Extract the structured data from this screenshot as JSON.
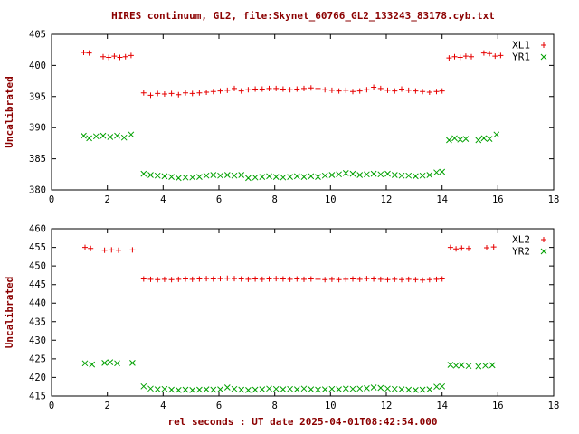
{
  "title": "HIRES continuum, GL2, file:Skynet_60766_GL2_133243_83178.cyb.txt",
  "xlabel": "rel seconds : UT date 2025-04-01T08:42:54.000",
  "colors": {
    "text": "#8b0000",
    "axis": "#000000",
    "red": "#e60000",
    "green": "#00a000"
  },
  "chart_data": [
    {
      "type": "scatter",
      "ylabel": "Uncalibrated",
      "xlim": [
        0,
        18
      ],
      "ylim": [
        380,
        405
      ],
      "xticks": [
        0,
        2,
        4,
        6,
        8,
        10,
        12,
        14,
        16,
        18
      ],
      "yticks": [
        380,
        385,
        390,
        395,
        400,
        405
      ],
      "legend_position": "top-right",
      "grid": false,
      "series": [
        {
          "name": "XL1",
          "marker": "plus",
          "color": "#e60000",
          "points": [
            [
              1.15,
              402.1
            ],
            [
              1.35,
              402.0
            ],
            [
              1.85,
              401.4
            ],
            [
              2.05,
              401.3
            ],
            [
              2.25,
              401.5
            ],
            [
              2.45,
              401.3
            ],
            [
              2.65,
              401.4
            ],
            [
              2.85,
              401.6
            ],
            [
              3.3,
              395.6
            ],
            [
              3.55,
              395.2
            ],
            [
              3.8,
              395.5
            ],
            [
              4.05,
              395.4
            ],
            [
              4.3,
              395.5
            ],
            [
              4.55,
              395.3
            ],
            [
              4.8,
              395.6
            ],
            [
              5.05,
              395.5
            ],
            [
              5.3,
              395.6
            ],
            [
              5.55,
              395.7
            ],
            [
              5.8,
              395.8
            ],
            [
              6.05,
              395.9
            ],
            [
              6.3,
              396.0
            ],
            [
              6.55,
              396.3
            ],
            [
              6.8,
              395.9
            ],
            [
              7.05,
              396.1
            ],
            [
              7.3,
              396.2
            ],
            [
              7.55,
              396.2
            ],
            [
              7.8,
              396.3
            ],
            [
              8.05,
              396.3
            ],
            [
              8.3,
              396.2
            ],
            [
              8.55,
              396.1
            ],
            [
              8.8,
              396.2
            ],
            [
              9.05,
              396.3
            ],
            [
              9.3,
              396.4
            ],
            [
              9.55,
              396.3
            ],
            [
              9.8,
              396.1
            ],
            [
              10.05,
              396.0
            ],
            [
              10.3,
              395.9
            ],
            [
              10.55,
              396.0
            ],
            [
              10.8,
              395.8
            ],
            [
              11.05,
              395.9
            ],
            [
              11.3,
              396.1
            ],
            [
              11.55,
              396.5
            ],
            [
              11.8,
              396.3
            ],
            [
              12.05,
              396.0
            ],
            [
              12.3,
              395.9
            ],
            [
              12.55,
              396.2
            ],
            [
              12.8,
              396.0
            ],
            [
              13.05,
              395.9
            ],
            [
              13.3,
              395.8
            ],
            [
              13.55,
              395.7
            ],
            [
              13.8,
              395.8
            ],
            [
              14.0,
              395.9
            ],
            [
              14.25,
              401.2
            ],
            [
              14.45,
              401.4
            ],
            [
              14.65,
              401.3
            ],
            [
              14.85,
              401.5
            ],
            [
              15.05,
              401.4
            ],
            [
              15.5,
              402.0
            ],
            [
              15.7,
              401.9
            ],
            [
              15.9,
              401.5
            ],
            [
              16.1,
              401.6
            ]
          ]
        },
        {
          "name": "YR1",
          "marker": "cross",
          "color": "#00a000",
          "points": [
            [
              1.15,
              388.7
            ],
            [
              1.35,
              388.3
            ],
            [
              1.6,
              388.6
            ],
            [
              1.85,
              388.7
            ],
            [
              2.1,
              388.5
            ],
            [
              2.35,
              388.7
            ],
            [
              2.6,
              388.4
            ],
            [
              2.85,
              388.9
            ],
            [
              3.3,
              382.6
            ],
            [
              3.55,
              382.4
            ],
            [
              3.8,
              382.3
            ],
            [
              4.05,
              382.2
            ],
            [
              4.3,
              382.1
            ],
            [
              4.55,
              381.9
            ],
            [
              4.8,
              382.0
            ],
            [
              5.05,
              382.0
            ],
            [
              5.3,
              382.1
            ],
            [
              5.55,
              382.3
            ],
            [
              5.8,
              382.4
            ],
            [
              6.05,
              382.3
            ],
            [
              6.3,
              382.4
            ],
            [
              6.55,
              382.3
            ],
            [
              6.8,
              382.4
            ],
            [
              7.05,
              381.9
            ],
            [
              7.3,
              382.0
            ],
            [
              7.55,
              382.1
            ],
            [
              7.8,
              382.2
            ],
            [
              8.05,
              382.1
            ],
            [
              8.3,
              382.0
            ],
            [
              8.55,
              382.1
            ],
            [
              8.8,
              382.2
            ],
            [
              9.05,
              382.1
            ],
            [
              9.3,
              382.2
            ],
            [
              9.55,
              382.1
            ],
            [
              9.8,
              382.3
            ],
            [
              10.05,
              382.4
            ],
            [
              10.3,
              382.5
            ],
            [
              10.55,
              382.7
            ],
            [
              10.8,
              382.6
            ],
            [
              11.05,
              382.4
            ],
            [
              11.3,
              382.5
            ],
            [
              11.55,
              382.6
            ],
            [
              11.8,
              382.5
            ],
            [
              12.05,
              382.6
            ],
            [
              12.3,
              382.4
            ],
            [
              12.55,
              382.3
            ],
            [
              12.8,
              382.3
            ],
            [
              13.05,
              382.2
            ],
            [
              13.3,
              382.3
            ],
            [
              13.55,
              382.4
            ],
            [
              13.8,
              382.8
            ],
            [
              14.0,
              382.9
            ],
            [
              14.25,
              388.0
            ],
            [
              14.45,
              388.3
            ],
            [
              14.65,
              388.1
            ],
            [
              14.85,
              388.2
            ],
            [
              15.3,
              388.0
            ],
            [
              15.5,
              388.3
            ],
            [
              15.7,
              388.2
            ],
            [
              15.95,
              388.9
            ]
          ]
        }
      ]
    },
    {
      "type": "scatter",
      "ylabel": "Uncalibrated",
      "xlim": [
        0,
        18
      ],
      "ylim": [
        415,
        460
      ],
      "xticks": [
        0,
        2,
        4,
        6,
        8,
        10,
        12,
        14,
        16,
        18
      ],
      "yticks": [
        415,
        420,
        425,
        430,
        435,
        440,
        445,
        450,
        455,
        460
      ],
      "legend_position": "top-right",
      "grid": false,
      "series": [
        {
          "name": "XL2",
          "marker": "plus",
          "color": "#e60000",
          "points": [
            [
              1.2,
              455.0
            ],
            [
              1.4,
              454.7
            ],
            [
              1.9,
              454.2
            ],
            [
              2.15,
              454.3
            ],
            [
              2.4,
              454.2
            ],
            [
              2.9,
              454.3
            ],
            [
              3.3,
              446.5
            ],
            [
              3.55,
              446.4
            ],
            [
              3.8,
              446.3
            ],
            [
              4.05,
              446.4
            ],
            [
              4.3,
              446.3
            ],
            [
              4.55,
              446.4
            ],
            [
              4.8,
              446.5
            ],
            [
              5.05,
              446.4
            ],
            [
              5.3,
              446.5
            ],
            [
              5.55,
              446.6
            ],
            [
              5.8,
              446.5
            ],
            [
              6.05,
              446.6
            ],
            [
              6.3,
              446.7
            ],
            [
              6.55,
              446.6
            ],
            [
              6.8,
              446.5
            ],
            [
              7.05,
              446.4
            ],
            [
              7.3,
              446.5
            ],
            [
              7.55,
              446.4
            ],
            [
              7.8,
              446.5
            ],
            [
              8.05,
              446.6
            ],
            [
              8.3,
              446.5
            ],
            [
              8.55,
              446.4
            ],
            [
              8.8,
              446.5
            ],
            [
              9.05,
              446.4
            ],
            [
              9.3,
              446.5
            ],
            [
              9.55,
              446.4
            ],
            [
              9.8,
              446.3
            ],
            [
              10.05,
              446.4
            ],
            [
              10.3,
              446.3
            ],
            [
              10.55,
              446.4
            ],
            [
              10.8,
              446.5
            ],
            [
              11.05,
              446.4
            ],
            [
              11.3,
              446.6
            ],
            [
              11.55,
              446.5
            ],
            [
              11.8,
              446.4
            ],
            [
              12.05,
              446.3
            ],
            [
              12.3,
              446.4
            ],
            [
              12.55,
              446.3
            ],
            [
              12.8,
              446.4
            ],
            [
              13.05,
              446.3
            ],
            [
              13.3,
              446.2
            ],
            [
              13.55,
              446.3
            ],
            [
              13.8,
              446.4
            ],
            [
              14.0,
              446.5
            ],
            [
              14.3,
              455.0
            ],
            [
              14.5,
              454.6
            ],
            [
              14.7,
              454.8
            ],
            [
              14.95,
              454.7
            ],
            [
              15.6,
              454.9
            ],
            [
              15.85,
              455.1
            ]
          ]
        },
        {
          "name": "YR2",
          "marker": "cross",
          "color": "#00a000",
          "points": [
            [
              1.2,
              423.8
            ],
            [
              1.45,
              423.5
            ],
            [
              1.9,
              423.9
            ],
            [
              2.1,
              424.1
            ],
            [
              2.35,
              423.8
            ],
            [
              2.9,
              423.9
            ],
            [
              3.3,
              417.6
            ],
            [
              3.55,
              417.0
            ],
            [
              3.8,
              416.8
            ],
            [
              4.05,
              416.9
            ],
            [
              4.3,
              416.7
            ],
            [
              4.55,
              416.6
            ],
            [
              4.8,
              416.7
            ],
            [
              5.05,
              416.6
            ],
            [
              5.3,
              416.7
            ],
            [
              5.55,
              416.8
            ],
            [
              5.8,
              416.7
            ],
            [
              6.05,
              416.8
            ],
            [
              6.3,
              417.3
            ],
            [
              6.55,
              416.9
            ],
            [
              6.8,
              416.7
            ],
            [
              7.05,
              416.6
            ],
            [
              7.3,
              416.7
            ],
            [
              7.55,
              416.8
            ],
            [
              7.8,
              417.0
            ],
            [
              8.05,
              416.9
            ],
            [
              8.3,
              416.8
            ],
            [
              8.55,
              416.9
            ],
            [
              8.8,
              416.8
            ],
            [
              9.05,
              417.0
            ],
            [
              9.3,
              416.8
            ],
            [
              9.55,
              416.7
            ],
            [
              9.8,
              416.8
            ],
            [
              10.05,
              416.9
            ],
            [
              10.3,
              416.8
            ],
            [
              10.55,
              417.0
            ],
            [
              10.8,
              416.9
            ],
            [
              11.05,
              417.0
            ],
            [
              11.3,
              417.1
            ],
            [
              11.55,
              417.3
            ],
            [
              11.8,
              417.2
            ],
            [
              12.05,
              417.0
            ],
            [
              12.3,
              416.9
            ],
            [
              12.55,
              416.8
            ],
            [
              12.8,
              416.7
            ],
            [
              13.05,
              416.6
            ],
            [
              13.3,
              416.7
            ],
            [
              13.55,
              416.8
            ],
            [
              13.8,
              417.5
            ],
            [
              14.0,
              417.6
            ],
            [
              14.3,
              423.4
            ],
            [
              14.5,
              423.2
            ],
            [
              14.7,
              423.3
            ],
            [
              14.95,
              423.1
            ],
            [
              15.3,
              423.0
            ],
            [
              15.55,
              423.2
            ],
            [
              15.8,
              423.3
            ]
          ]
        }
      ]
    }
  ]
}
